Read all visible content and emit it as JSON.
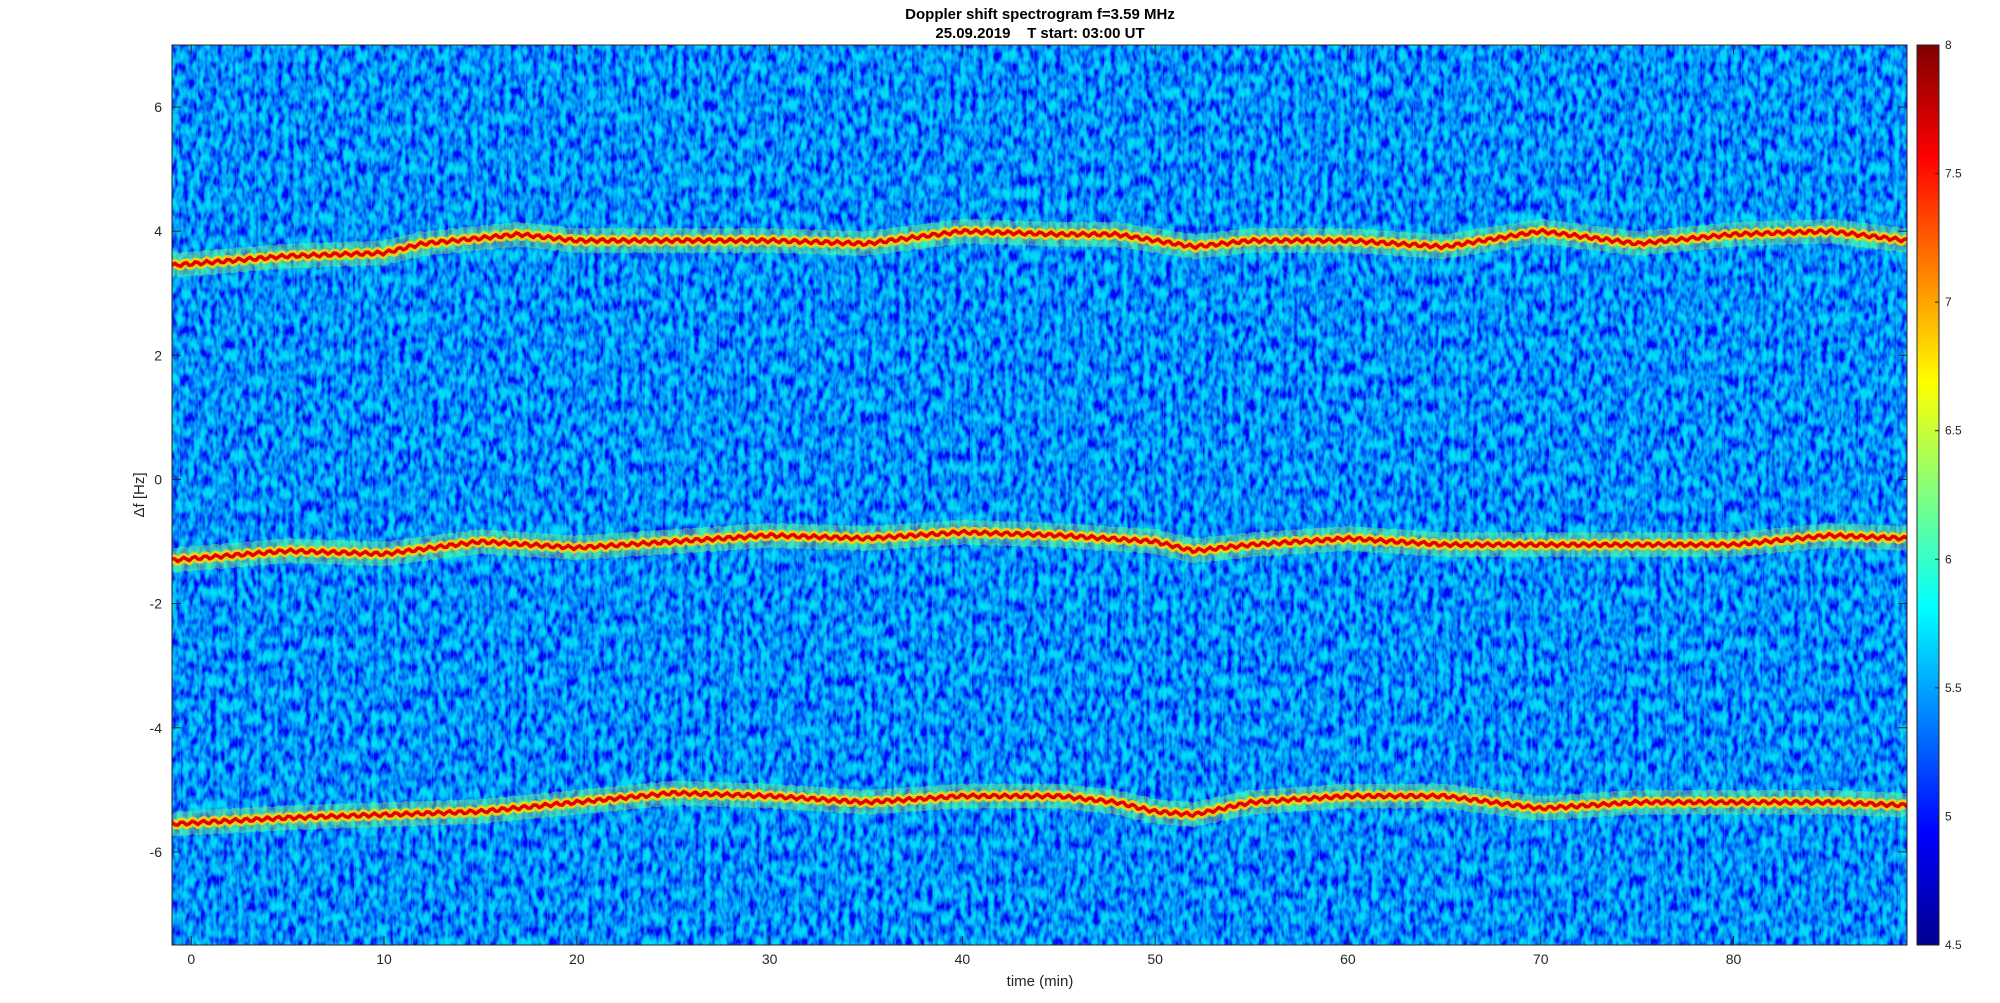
{
  "chart_data": {
    "type": "heatmap",
    "title": "Doppler shift spectrogram f=3.59 MHz",
    "subtitle": "25.09.2019    T start: 03:00 UT",
    "xlabel": "time (min)",
    "ylabel": "Δf [Hz]",
    "xlim": [
      -1,
      89
    ],
    "ylim": [
      -7.5,
      7
    ],
    "x_ticks": [
      0,
      10,
      20,
      30,
      40,
      50,
      60,
      70,
      80
    ],
    "y_ticks": [
      -6,
      -4,
      -2,
      0,
      2,
      4,
      6
    ],
    "colormap": "jet",
    "clim": [
      4.5,
      8
    ],
    "colorbar_ticks": [
      4.5,
      5,
      5.5,
      6,
      6.5,
      7,
      7.5,
      8
    ],
    "grid": false,
    "traces": [
      {
        "x": [
          -1,
          5,
          10,
          12,
          17,
          20,
          25,
          30,
          35,
          40,
          45,
          48,
          50,
          52,
          55,
          60,
          65,
          70,
          75,
          80,
          85,
          89
        ],
        "y": [
          3.45,
          3.6,
          3.65,
          3.8,
          3.95,
          3.85,
          3.85,
          3.85,
          3.8,
          4.0,
          3.95,
          3.95,
          3.85,
          3.75,
          3.85,
          3.85,
          3.75,
          4.0,
          3.8,
          3.95,
          4.0,
          3.85
        ]
      },
      {
        "x": [
          -1,
          5,
          10,
          15,
          20,
          25,
          30,
          35,
          40,
          45,
          50,
          52,
          55,
          60,
          65,
          70,
          75,
          80,
          85,
          89
        ],
        "y": [
          -1.3,
          -1.15,
          -1.2,
          -1.0,
          -1.1,
          -1.0,
          -0.9,
          -0.95,
          -0.85,
          -0.9,
          -1.0,
          -1.15,
          -1.05,
          -0.95,
          -1.05,
          -1.05,
          -1.05,
          -1.05,
          -0.9,
          -0.95
        ]
      },
      {
        "x": [
          -1,
          5,
          10,
          15,
          20,
          25,
          30,
          35,
          40,
          45,
          48,
          50,
          52,
          55,
          60,
          65,
          70,
          75,
          80,
          85,
          89
        ],
        "y": [
          -5.55,
          -5.45,
          -5.4,
          -5.35,
          -5.2,
          -5.05,
          -5.1,
          -5.2,
          -5.1,
          -5.1,
          -5.2,
          -5.35,
          -5.4,
          -5.2,
          -5.1,
          -5.1,
          -5.3,
          -5.2,
          -5.2,
          -5.2,
          -5.25
        ]
      }
    ]
  }
}
